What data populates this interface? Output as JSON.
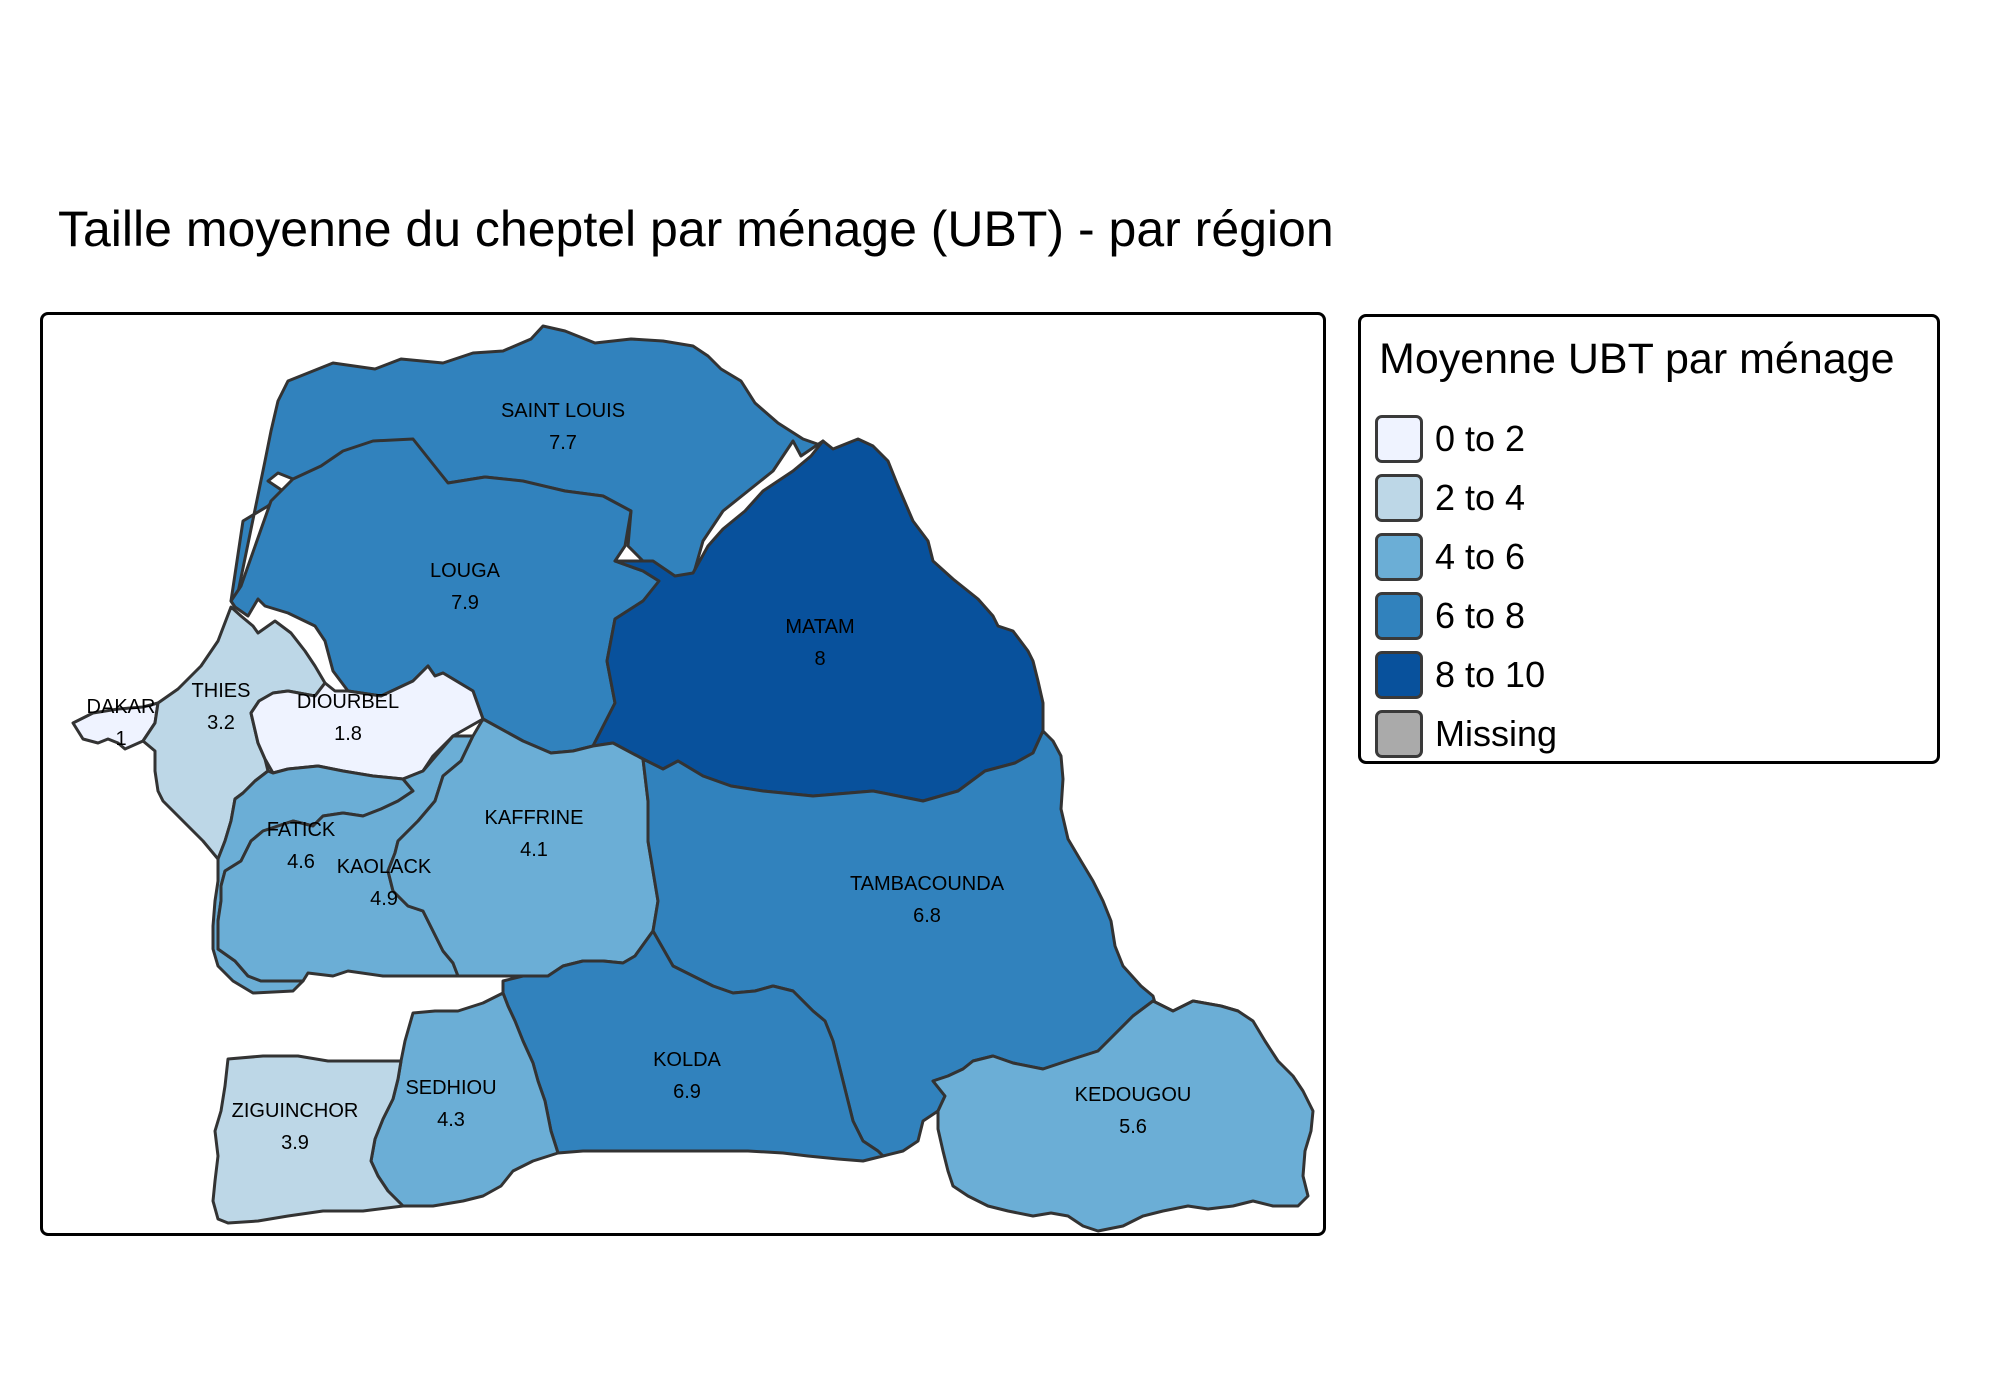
{
  "title": "Taille moyenne du cheptel par ménage (UBT) - par région",
  "legend": {
    "title": "Moyenne UBT par ménage",
    "classes": [
      {
        "label": "0 to 2",
        "color": "#eff3ff"
      },
      {
        "label": "2 to 4",
        "color": "#bdd7e7"
      },
      {
        "label": "4 to 6",
        "color": "#6baed6"
      },
      {
        "label": "6 to 8",
        "color": "#3182bd"
      },
      {
        "label": "8 to 10",
        "color": "#08519c"
      },
      {
        "label": "Missing",
        "color": "#aaaaaa"
      }
    ]
  },
  "regions": [
    {
      "id": "saint-louis",
      "name": "SAINT LOUIS",
      "value": "7.7",
      "color": "#3182bd"
    },
    {
      "id": "louga",
      "name": "LOUGA",
      "value": "7.9",
      "color": "#3182bd"
    },
    {
      "id": "matam",
      "name": "MATAM",
      "value": "8",
      "color": "#08519c"
    },
    {
      "id": "dakar",
      "name": "DAKAR",
      "value": "1",
      "color": "#eff3ff"
    },
    {
      "id": "thies",
      "name": "THIES",
      "value": "3.2",
      "color": "#bdd7e7"
    },
    {
      "id": "diourbel",
      "name": "DIOURBEL",
      "value": "1.8",
      "color": "#eff3ff"
    },
    {
      "id": "fatick",
      "name": "FATICK",
      "value": "4.6",
      "color": "#6baed6"
    },
    {
      "id": "kaolack",
      "name": "KAOLACK",
      "value": "4.9",
      "color": "#6baed6"
    },
    {
      "id": "kaffrine",
      "name": "KAFFRINE",
      "value": "4.1",
      "color": "#6baed6"
    },
    {
      "id": "tambacounda",
      "name": "TAMBACOUNDA",
      "value": "6.8",
      "color": "#3182bd"
    },
    {
      "id": "kolda",
      "name": "KOLDA",
      "value": "6.9",
      "color": "#3182bd"
    },
    {
      "id": "sedhiou",
      "name": "SEDHIOU",
      "value": "4.3",
      "color": "#6baed6"
    },
    {
      "id": "ziguinchor",
      "name": "ZIGUINCHOR",
      "value": "3.9",
      "color": "#bdd7e7"
    },
    {
      "id": "kedougou",
      "name": "KEDOUGOU",
      "value": "5.6",
      "color": "#6baed6"
    }
  ]
}
